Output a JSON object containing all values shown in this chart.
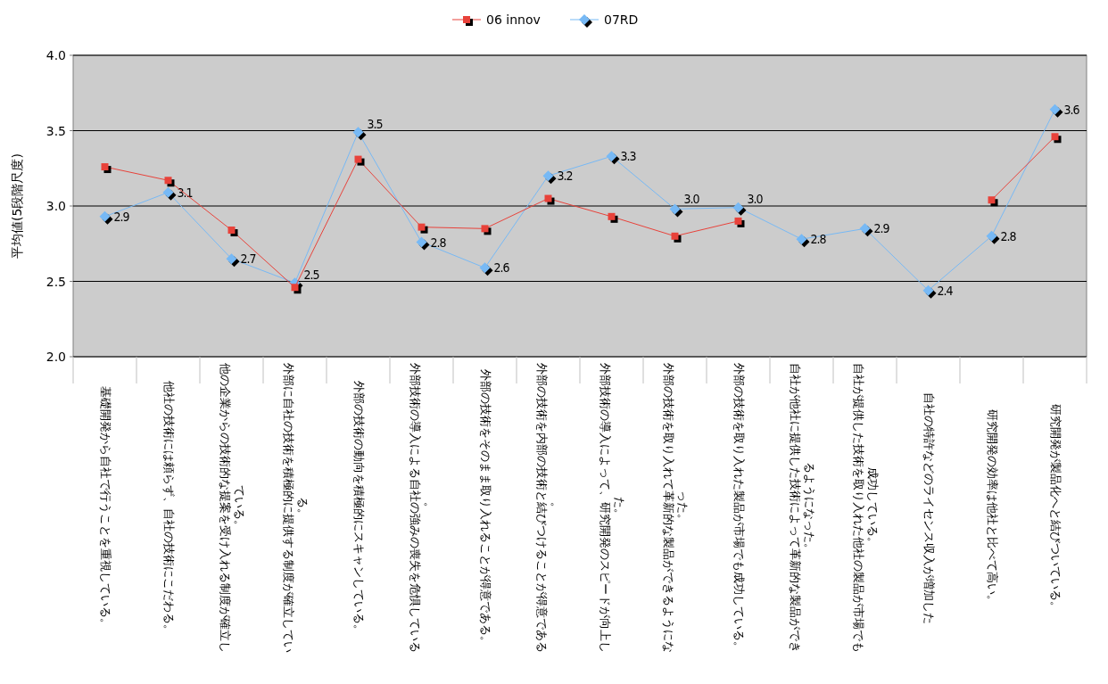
{
  "chart_data": {
    "type": "line",
    "ylabel": "平均値(5段階尺度)",
    "categories": [
      "基礎開発から自社で行うことを重視している。",
      "他社の技術には頼らず、自社の技術にこだわる。",
      "他の企業からの技術的な提案を受け入れる制度が確立している。",
      "外部に自社の技術を積極的に提供する制度が確立している。",
      "外部の技術の動向を積極的にスキャンしている。",
      "外部技術の導入による自社の強みの喪失を危惧している。",
      "外部の技術をそのまま取り入れることが得意である。",
      "外部の技術を内部の技術と結びつけることが得意である。",
      "外部技術の導入によって、研究開発のスピードが向上した。",
      "外部の技術を取り入れて革新的な製品ができるようになった。",
      "外部の技術を取り入れた製品が市場でも成功している。",
      "自社が他社に提供した技術によって革新的な製品ができるようになった。",
      "自社が提供した技術を取り入れた他社の製品が市場でも成功している。",
      "自社の特許などのライセンス収入が増加した",
      "研究開発の効率は他社と比べて高い。",
      "研究開発が製品化へと結びついている。"
    ],
    "series": [
      {
        "name": "06 innov",
        "color": "#e8423a",
        "marker": "square",
        "values": [
          3.26,
          3.17,
          2.84,
          2.46,
          3.31,
          2.86,
          2.85,
          3.05,
          2.93,
          2.8,
          2.9,
          null,
          null,
          null,
          3.04,
          3.46
        ]
      },
      {
        "name": "07RD",
        "color": "#77b9f5",
        "marker": "diamond",
        "values": [
          2.93,
          3.09,
          2.65,
          2.49,
          3.49,
          2.76,
          2.59,
          3.2,
          3.33,
          2.98,
          2.99,
          2.78,
          2.85,
          2.44,
          2.8,
          3.64
        ],
        "value_labels": [
          "2.9",
          "3.1",
          "2.7",
          "2.5",
          "3.5",
          "2.8",
          "2.6",
          "3.2",
          "3.3",
          "3.0",
          "3.0",
          "2.8",
          "2.9",
          "2.4",
          "2.8",
          "3.6"
        ]
      }
    ],
    "ylim": [
      2.0,
      4.0
    ],
    "yticks": [
      {
        "value": 2.0,
        "label": "2.0"
      },
      {
        "value": 2.5,
        "label": "2.5"
      },
      {
        "value": 3.0,
        "label": "3.0"
      },
      {
        "value": 3.5,
        "label": "3.5"
      },
      {
        "value": 4.0,
        "label": "4.0"
      }
    ],
    "grid": "y",
    "legend": "top"
  }
}
